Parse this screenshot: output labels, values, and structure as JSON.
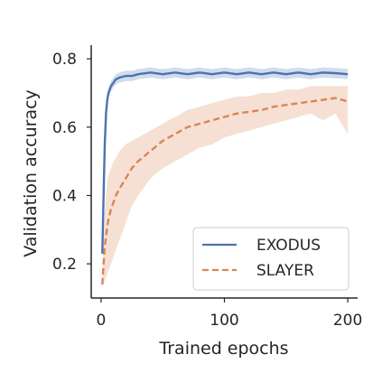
{
  "chart_data": {
    "type": "line",
    "xlabel": "Trained epochs",
    "ylabel": "Validation accuracy",
    "xlim": [
      -8,
      208
    ],
    "ylim": [
      0.1,
      0.84
    ],
    "xticks": [
      0,
      100,
      200
    ],
    "yticks": [
      0.2,
      0.4,
      0.6,
      0.8
    ],
    "grid": false,
    "legend_position": "lower-right",
    "series": [
      {
        "name": "EXODUS",
        "color": "#4c72b0",
        "style": "solid",
        "x": [
          1,
          2,
          3,
          4,
          5,
          6,
          8,
          10,
          12,
          15,
          20,
          25,
          30,
          40,
          50,
          60,
          70,
          80,
          90,
          100,
          110,
          120,
          130,
          140,
          150,
          160,
          170,
          180,
          190,
          200
        ],
        "y": [
          0.23,
          0.4,
          0.55,
          0.64,
          0.68,
          0.7,
          0.72,
          0.73,
          0.74,
          0.745,
          0.75,
          0.75,
          0.755,
          0.76,
          0.755,
          0.76,
          0.755,
          0.76,
          0.755,
          0.76,
          0.755,
          0.76,
          0.755,
          0.76,
          0.755,
          0.76,
          0.755,
          0.76,
          0.758,
          0.755
        ],
        "band": 0.015
      },
      {
        "name": "SLAYER",
        "color": "#dd8452",
        "style": "dashed",
        "x": [
          1,
          2,
          3,
          4,
          5,
          6,
          8,
          10,
          12,
          15,
          20,
          25,
          30,
          40,
          50,
          60,
          70,
          80,
          90,
          100,
          110,
          120,
          130,
          140,
          150,
          160,
          170,
          180,
          190,
          200
        ],
        "y": [
          0.14,
          0.2,
          0.25,
          0.28,
          0.31,
          0.33,
          0.36,
          0.38,
          0.4,
          0.42,
          0.45,
          0.48,
          0.5,
          0.53,
          0.56,
          0.58,
          0.6,
          0.61,
          0.62,
          0.63,
          0.64,
          0.645,
          0.65,
          0.66,
          0.665,
          0.67,
          0.675,
          0.68,
          0.685,
          0.675
        ],
        "band_low": [
          0.13,
          0.14,
          0.15,
          0.16,
          0.17,
          0.18,
          0.2,
          0.22,
          0.24,
          0.27,
          0.32,
          0.37,
          0.4,
          0.45,
          0.48,
          0.5,
          0.52,
          0.54,
          0.55,
          0.57,
          0.58,
          0.59,
          0.6,
          0.61,
          0.62,
          0.63,
          0.64,
          0.62,
          0.64,
          0.58
        ],
        "band_high": [
          0.16,
          0.27,
          0.35,
          0.4,
          0.44,
          0.46,
          0.48,
          0.5,
          0.51,
          0.53,
          0.55,
          0.56,
          0.57,
          0.59,
          0.61,
          0.63,
          0.65,
          0.66,
          0.67,
          0.68,
          0.69,
          0.69,
          0.7,
          0.7,
          0.71,
          0.71,
          0.72,
          0.72,
          0.72,
          0.72
        ]
      }
    ]
  }
}
